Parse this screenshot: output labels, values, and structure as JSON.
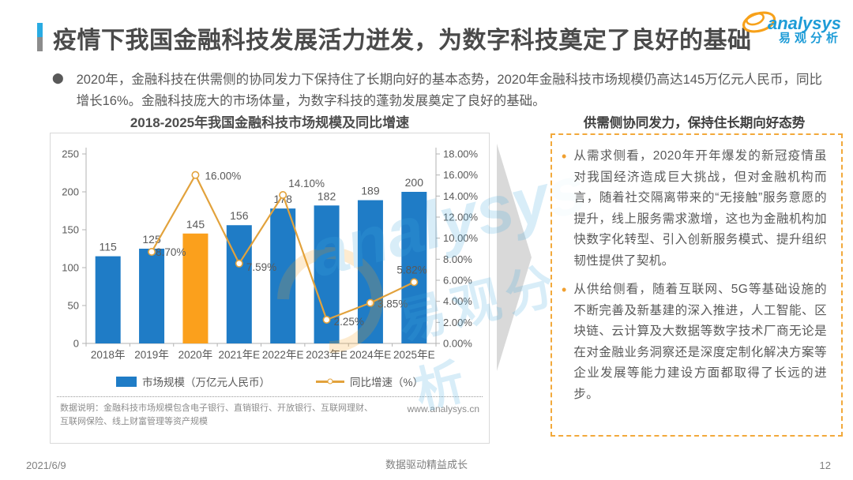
{
  "page": {
    "title": "疫情下我国金融科技发展活力迸发，为数字科技奠定了良好的基础",
    "intro_bullet": "2020年，金融科技在供需侧的协同发力下保持住了长期向好的基本态势，2020年金融科技市场规模仍高达145万亿元人民币，同比增长16%。金融科技庞大的市场体量，为数字科技的蓬勃发展奠定了良好的基础。",
    "footer": {
      "date": "2021/6/9",
      "slogan": "数据驱动精益成长",
      "page_number": "12"
    }
  },
  "logo": {
    "en": "analysys",
    "cn": "易观分析"
  },
  "watermark": {
    "en": "analysys",
    "cn": "易观分析"
  },
  "chart": {
    "title": "2018-2025年我国金融科技市场规模及同比增速",
    "note": "数据说明：金融科技市场规模包含电子银行、直销银行、开放银行、互联网理财、互联网保险、线上财富管理等资产规模",
    "website": "www.analysys.cn"
  },
  "chart_data": {
    "type": "bar",
    "title": "2018-2025年我国金融科技市场规模及同比增速",
    "categories": [
      "2018年",
      "2019年",
      "2020年",
      "2021年E",
      "2022年E",
      "2023年E",
      "2024年E",
      "2025年E"
    ],
    "series": [
      {
        "name": "市场规模（万亿元人民币）",
        "type": "bar",
        "axis": "left",
        "values": [
          115,
          125,
          145,
          156,
          178,
          182,
          189,
          200
        ],
        "highlight_index": 2
      },
      {
        "name": "同比增速（%）",
        "type": "line",
        "axis": "right",
        "values": [
          null,
          8.7,
          16.0,
          7.59,
          14.1,
          2.25,
          3.85,
          5.82
        ],
        "labels": [
          "",
          "8.70%",
          "16.00%",
          "7.59%",
          "14.10%",
          "2.25%",
          "3.85%",
          "5.82%"
        ]
      }
    ],
    "left_axis": {
      "min": 0,
      "max": 250,
      "step": 50,
      "ticks": [
        "0",
        "50",
        "100",
        "150",
        "200",
        "250"
      ]
    },
    "right_axis": {
      "min": 0,
      "max": 18,
      "step": 2,
      "ticks": [
        "0.00%",
        "2.00%",
        "4.00%",
        "6.00%",
        "8.00%",
        "10.00%",
        "12.00%",
        "14.00%",
        "16.00%",
        "18.00%"
      ]
    },
    "legend_position": "bottom",
    "grid": false
  },
  "right_panel": {
    "title": "供需侧协同发力，保持住长期向好态势",
    "bullets": [
      "从需求侧看，2020年开年爆发的新冠疫情虽对我国经济造成巨大挑战，但对金融机构而言，随着社交隔离带来的“无接触”服务意愿的提升，线上服务需求激增，这也为金融机构加快数字化转型、引入创新服务模式、提升组织韧性提供了契机。",
      "从供给侧看，随着互联网、5G等基础设施的不断完善及新基建的深入推进，人工智能、区块链、云计算及大数据等数字技术厂商无论是在对金融业务洞察还是深度定制化解决方案等企业发展等能力建设方面都取得了长远的进步。"
    ]
  },
  "colors": {
    "bar": "#1F7CC6",
    "bar_highlight": "#FBA01C",
    "line": "#E2A23C",
    "axis": "#B3B3B3",
    "chart_text": "#595959",
    "accent_blue": "#29ABE2",
    "accent_gray": "#8C8C8C",
    "logo_blue": "#1E9CD7",
    "logo_orange": "#F7A11A",
    "panel_border": "#F2A93B",
    "arrow_gray": "#D9D9D9"
  }
}
